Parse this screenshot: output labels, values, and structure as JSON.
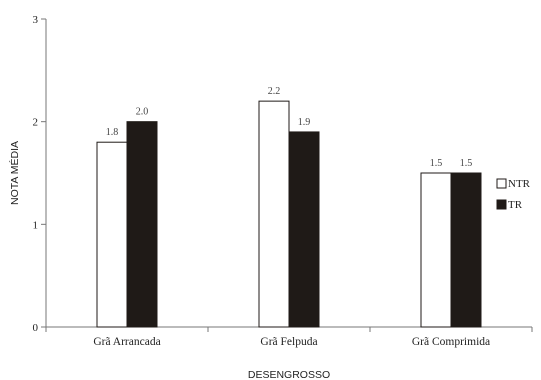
{
  "chart_data": {
    "type": "bar",
    "categories": [
      "Grã Arrancada",
      "Grã Felpuda",
      "Grã Comprimida"
    ],
    "series": [
      {
        "name": "NTR",
        "values": [
          1.8,
          2.2,
          1.5
        ],
        "value_labels": [
          "1.8",
          "2.2",
          "1.5"
        ],
        "color": "#ffffff"
      },
      {
        "name": "TR",
        "values": [
          2.0,
          1.9,
          1.5
        ],
        "value_labels": [
          "2.0",
          "1.9",
          "1.5"
        ],
        "color": "#1f1a17"
      }
    ],
    "xlabel": "DESENGROSSO",
    "ylabel": "NOTA MÉDIA",
    "ylim": [
      0,
      3
    ],
    "yticks": [
      "0",
      "1",
      "2",
      "3"
    ],
    "grid": false,
    "legend_position": "right"
  }
}
